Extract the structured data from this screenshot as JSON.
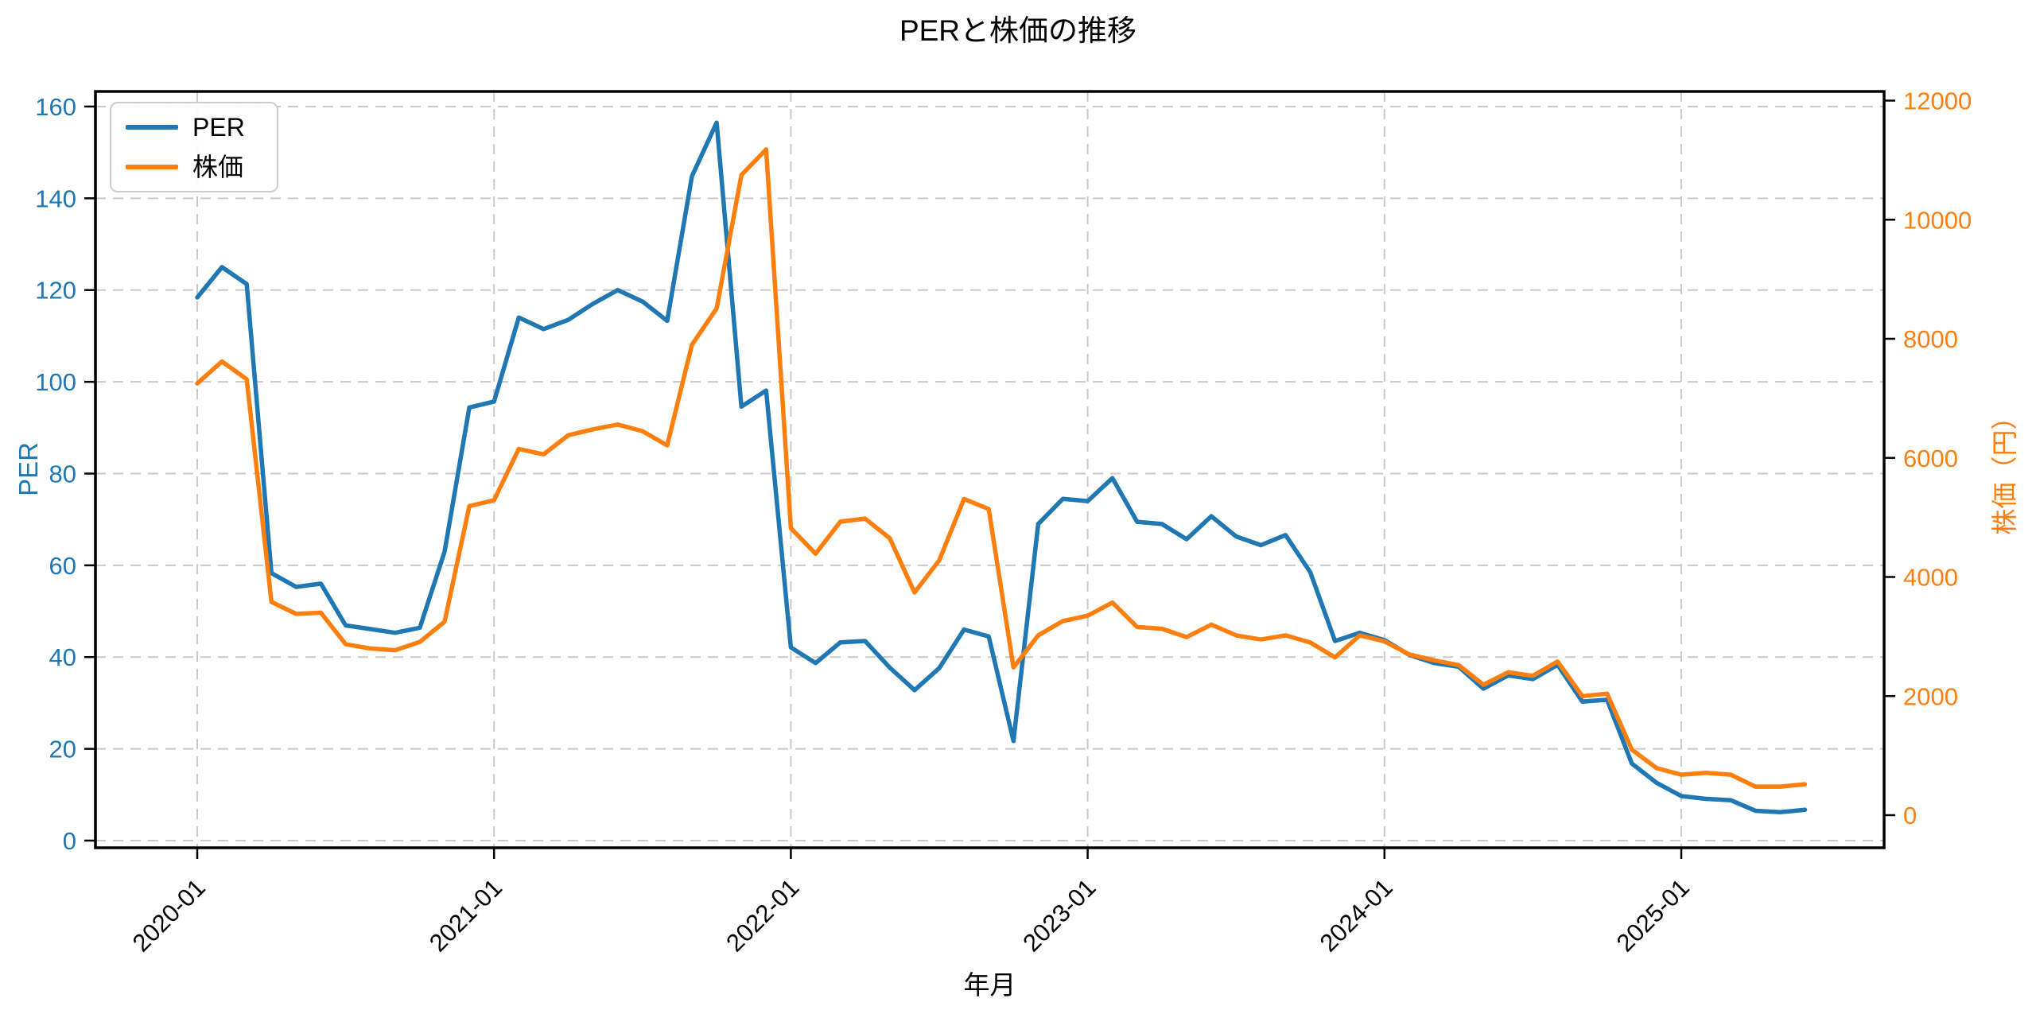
{
  "chart_data": {
    "type": "line",
    "title": "PERと株価の推移",
    "xlabel": "年月",
    "ylabel_left": "PER",
    "ylabel_right": "株価（円）",
    "legend": {
      "position": "upper-left",
      "entries": [
        "PER",
        "株価"
      ]
    },
    "grid": {
      "visible": true,
      "style": "dashed",
      "color": "#c9c9c9"
    },
    "x": [
      "2020-01",
      "2020-02",
      "2020-03",
      "2020-04",
      "2020-05",
      "2020-06",
      "2020-07",
      "2020-08",
      "2020-09",
      "2020-10",
      "2020-11",
      "2020-12",
      "2021-01",
      "2021-02",
      "2021-03",
      "2021-04",
      "2021-05",
      "2021-06",
      "2021-07",
      "2021-08",
      "2021-09",
      "2021-10",
      "2021-11",
      "2021-12",
      "2022-01",
      "2022-02",
      "2022-03",
      "2022-04",
      "2022-05",
      "2022-06",
      "2022-07",
      "2022-08",
      "2022-09",
      "2022-10",
      "2022-11",
      "2022-12",
      "2023-01",
      "2023-02",
      "2023-03",
      "2023-04",
      "2023-05",
      "2023-06",
      "2023-07",
      "2023-08",
      "2023-09",
      "2023-10",
      "2023-11",
      "2023-12",
      "2024-01",
      "2024-02",
      "2024-03",
      "2024-04",
      "2024-05",
      "2024-06",
      "2024-07",
      "2024-08",
      "2024-09",
      "2024-10",
      "2024-11",
      "2024-12",
      "2025-01",
      "2025-02",
      "2025-03",
      "2025-04",
      "2025-05",
      "2025-06"
    ],
    "series": [
      {
        "name": "PER",
        "axis": "left",
        "color": "#1f77b4",
        "values": [
          118.4,
          125.0,
          121.3,
          58.3,
          55.3,
          56.0,
          46.9,
          46.1,
          45.3,
          46.4,
          63.0,
          94.4,
          95.7,
          114.0,
          111.5,
          113.5,
          117.0,
          120.0,
          117.5,
          113.3,
          144.8,
          156.5,
          94.6,
          98.1,
          42.1,
          38.7,
          43.2,
          43.5,
          37.7,
          32.8,
          37.6,
          46.0,
          44.5,
          21.7,
          69.0,
          74.5,
          74.0,
          79.0,
          69.5,
          69.0,
          65.7,
          70.7,
          66.3,
          64.4,
          66.6,
          58.5,
          43.5,
          45.3,
          43.7,
          40.5,
          38.7,
          37.9,
          33.1,
          36.0,
          35.2,
          38.3,
          30.3,
          30.7,
          16.8,
          12.6,
          9.7,
          9.1,
          8.8,
          6.5,
          6.2,
          6.7
        ]
      },
      {
        "name": "株価",
        "axis": "right",
        "color": "#ff7f0e",
        "values": [
          7250,
          7620,
          7320,
          3580,
          3380,
          3400,
          2870,
          2800,
          2770,
          2910,
          3250,
          5190,
          5290,
          6150,
          6060,
          6380,
          6480,
          6560,
          6450,
          6210,
          7900,
          8510,
          10750,
          11180,
          4820,
          4390,
          4930,
          4980,
          4650,
          3740,
          4280,
          5310,
          5140,
          2480,
          3020,
          3260,
          3350,
          3570,
          3160,
          3130,
          2990,
          3200,
          3020,
          2950,
          3020,
          2900,
          2650,
          3020,
          2920,
          2700,
          2600,
          2520,
          2190,
          2400,
          2340,
          2580,
          2000,
          2040,
          1100,
          790,
          680,
          710,
          680,
          480,
          480,
          520
        ]
      }
    ],
    "xticks": [
      "2020-01",
      "2021-01",
      "2022-01",
      "2023-01",
      "2024-01",
      "2025-01"
    ],
    "yticks_left": {
      "values": [
        0,
        20,
        40,
        60,
        80,
        100,
        120,
        140,
        160
      ],
      "color": "#1f77b4"
    },
    "yticks_right": {
      "values": [
        0,
        2000,
        4000,
        6000,
        8000,
        10000,
        12000
      ],
      "color": "#ff7f0e"
    },
    "ylim_left": [
      0,
      163
    ],
    "ylim_right": [
      -550,
      12150
    ]
  }
}
